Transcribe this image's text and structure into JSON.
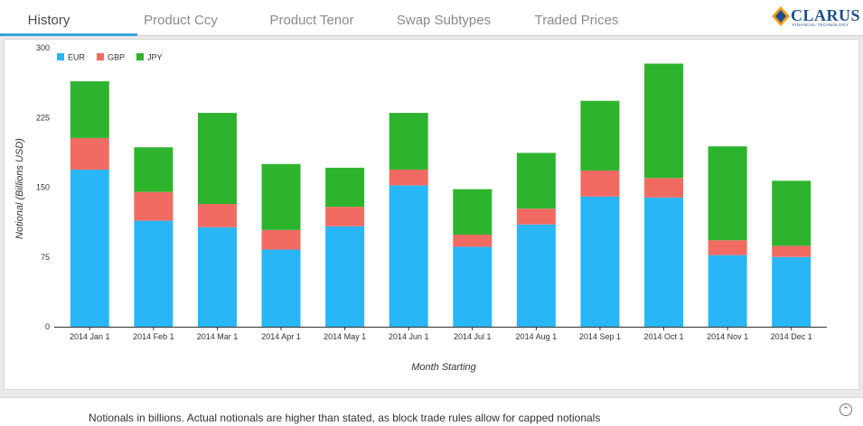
{
  "nav": {
    "tabs": [
      {
        "label": "History"
      },
      {
        "label": "Product Ccy"
      },
      {
        "label": "Product Tenor"
      },
      {
        "label": "Swap Subtypes"
      },
      {
        "label": "Traded Prices"
      }
    ],
    "logo": {
      "text": "CLARUS",
      "subtext": "FINANCIAL TECHNOLOGY"
    }
  },
  "colors": {
    "EUR": "#29b6f6",
    "GBP": "#f26b63",
    "JPY": "#2eb32e",
    "accent": "#3aa3d6"
  },
  "chart_data": {
    "type": "bar",
    "stacked": true,
    "title": "",
    "xlabel": "Month Starting",
    "ylabel": "Notional (Billions USD)",
    "ylim": [
      0,
      300
    ],
    "yticks": [
      0,
      75,
      150,
      225,
      300
    ],
    "grid": false,
    "legend": "top-left",
    "categories": [
      "2014 Jan 1",
      "2014 Feb 1",
      "2014 Mar 1",
      "2014 Apr 1",
      "2014 May 1",
      "2014 Jun 1",
      "2014 Jul 1",
      "2014 Aug 1",
      "2014 Sep 1",
      "2014 Oct 1",
      "2014 Nov 1",
      "2014 Dec 1"
    ],
    "series": [
      {
        "name": "EUR",
        "values": [
          169,
          114,
          107,
          83,
          108,
          152,
          86,
          110,
          140,
          139,
          77,
          75
        ]
      },
      {
        "name": "GBP",
        "values": [
          34,
          31,
          25,
          21,
          21,
          17,
          13,
          17,
          28,
          21,
          16,
          12
        ]
      },
      {
        "name": "JPY",
        "values": [
          61,
          48,
          98,
          71,
          42,
          61,
          49,
          60,
          75,
          123,
          101,
          70
        ]
      }
    ]
  },
  "footer": {
    "note": "Notionals in billions. Actual notionals are higher than stated, as block trade rules allow for capped notionals"
  }
}
